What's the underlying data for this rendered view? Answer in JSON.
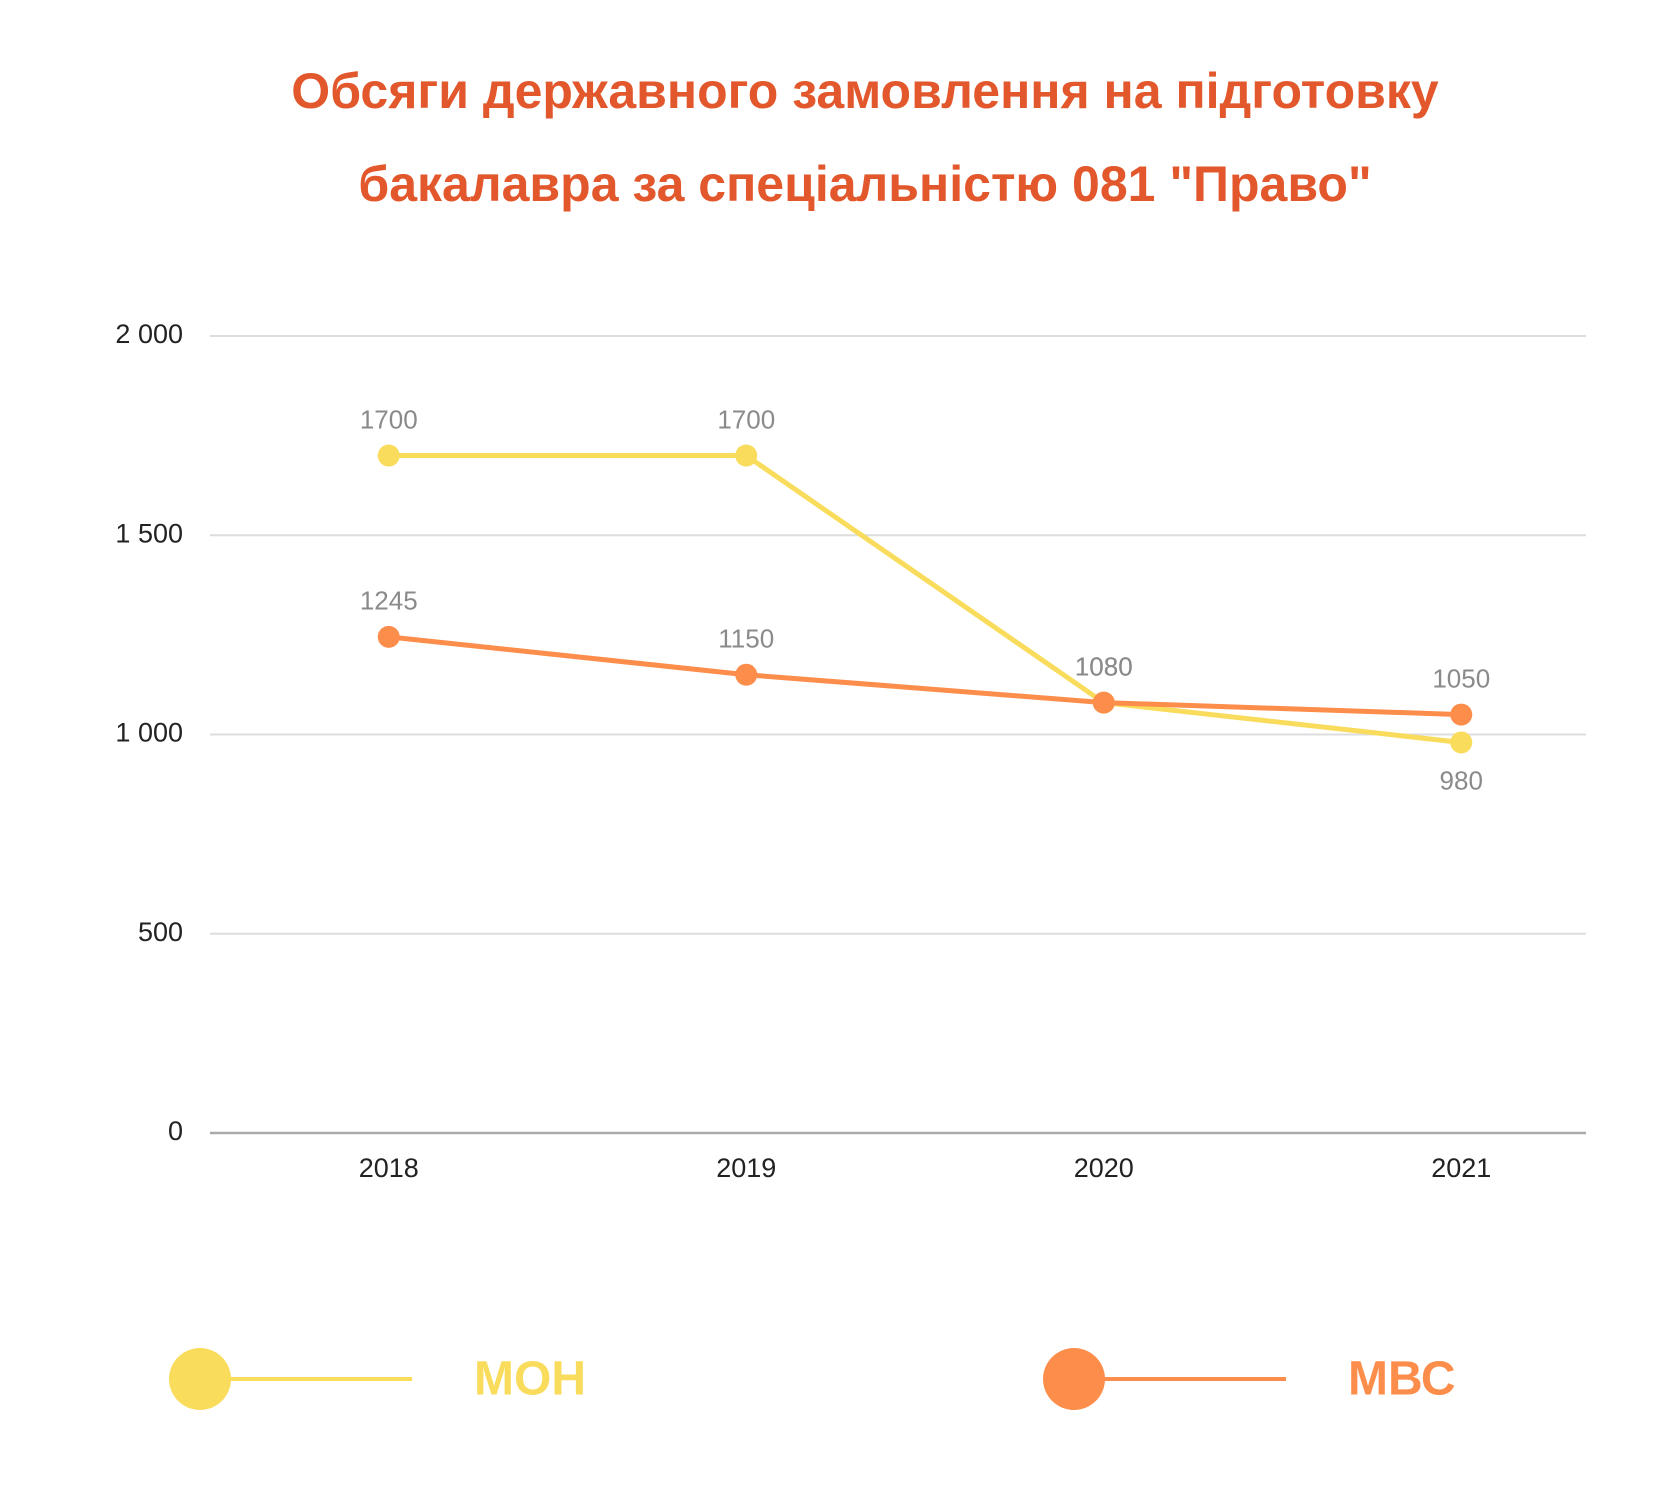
{
  "chart_data": {
    "type": "line",
    "title": [
      "Обсяги державного замовлення на підготовку",
      "бакалавра за спеціальністю 081 \"Право\""
    ],
    "categories": [
      "2018",
      "2019",
      "2020",
      "2021"
    ],
    "series": [
      {
        "name": "МОН",
        "color": "#f9dc5c",
        "values": [
          1700,
          1700,
          1080,
          980
        ]
      },
      {
        "name": "МВС",
        "color": "#fd8d4a",
        "values": [
          1245,
          1150,
          1080,
          1050
        ]
      }
    ],
    "ylim": [
      0,
      2000
    ],
    "yticks": [
      0,
      500,
      {
        "value": 1000,
        "label": "1 000"
      },
      {
        "value": 1500,
        "label": "1 500"
      },
      {
        "value": 2000,
        "label": "2 000"
      }
    ],
    "grid": true
  }
}
